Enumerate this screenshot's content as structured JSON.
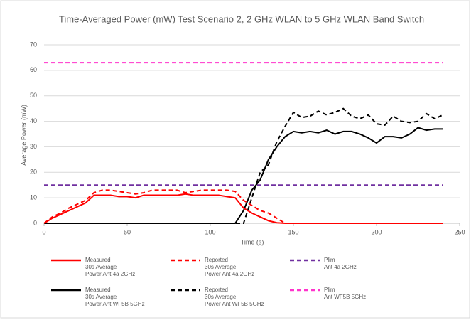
{
  "chart_data": {
    "type": "line",
    "title": "Time-Averaged Power (mW) Test Scenario 2, 2 GHz WLAN to 5 GHz WLAN Band Switch",
    "x_label": "Time (s)",
    "y_label": "Average Power (mW)",
    "xlim": [
      0,
      250
    ],
    "xticks": [
      0,
      50,
      100,
      150,
      200,
      250
    ],
    "ylim": [
      0,
      70
    ],
    "yticks": [
      0,
      10,
      20,
      30,
      40,
      50,
      60,
      70
    ],
    "grid": true,
    "legend": "bottom",
    "x": [
      0,
      5,
      10,
      15,
      20,
      25,
      30,
      35,
      40,
      45,
      50,
      55,
      60,
      65,
      70,
      75,
      80,
      85,
      90,
      95,
      100,
      105,
      110,
      115,
      120,
      125,
      130,
      135,
      140,
      145,
      150,
      155,
      160,
      165,
      170,
      175,
      180,
      185,
      190,
      195,
      200,
      205,
      210,
      215,
      220,
      225,
      230,
      235,
      240
    ],
    "series": [
      {
        "name": "Plim\nAnt 4a 2GHz",
        "color": "#7030a0",
        "dashed": true,
        "values": [
          15,
          15,
          15,
          15,
          15,
          15,
          15,
          15,
          15,
          15,
          15,
          15,
          15,
          15,
          15,
          15,
          15,
          15,
          15,
          15,
          15,
          15,
          15,
          15,
          15,
          15,
          15,
          15,
          15,
          15,
          15,
          15,
          15,
          15,
          15,
          15,
          15,
          15,
          15,
          15,
          15,
          15,
          15,
          15,
          15,
          15,
          15,
          15,
          15
        ]
      },
      {
        "name": "Plim\nAnt WF5B 5GHz",
        "color": "#ff33cc",
        "dashed": true,
        "values": [
          63,
          63,
          63,
          63,
          63,
          63,
          63,
          63,
          63,
          63,
          63,
          63,
          63,
          63,
          63,
          63,
          63,
          63,
          63,
          63,
          63,
          63,
          63,
          63,
          63,
          63,
          63,
          63,
          63,
          63,
          63,
          63,
          63,
          63,
          63,
          63,
          63,
          63,
          63,
          63,
          63,
          63,
          63,
          63,
          63,
          63,
          63,
          63,
          63
        ]
      },
      {
        "name": "Measured\n30s Average\nPower Ant WF5B 5GHz",
        "color": "#000000",
        "dashed": false,
        "values": [
          0,
          0,
          0,
          0,
          0,
          0,
          0,
          0,
          0,
          0,
          0,
          0,
          0,
          0,
          0,
          0,
          0,
          0,
          0,
          0,
          0,
          0,
          0,
          0,
          5,
          13,
          17,
          25,
          30,
          34,
          36,
          35.5,
          36,
          35.5,
          36.5,
          35,
          36,
          36,
          35,
          33.5,
          31.5,
          34,
          34,
          33.5,
          35,
          37.5,
          36.5,
          37,
          37
        ]
      },
      {
        "name": "Reported\n30s Average\nPower Ant WF5B 5GHz",
        "color": "#000000",
        "dashed": true,
        "values": [
          0,
          0,
          0,
          0,
          0,
          0,
          0,
          0,
          0,
          0,
          0,
          0,
          0,
          0,
          0,
          0,
          0,
          0,
          0,
          0,
          0,
          0,
          0,
          0,
          0,
          10,
          20,
          23,
          32,
          38,
          43.5,
          41.5,
          42,
          44,
          42.5,
          43.5,
          45,
          42,
          41,
          42.5,
          39,
          38.5,
          42,
          40,
          39.5,
          40,
          43,
          41,
          42.5
        ]
      },
      {
        "name": "Measured\n30s Average\nPower Ant 4a 2GHz",
        "color": "#ff0000",
        "dashed": false,
        "values": [
          0,
          2,
          3.5,
          5,
          6.5,
          8,
          11,
          11,
          11,
          10.5,
          10.5,
          10,
          11,
          11,
          11,
          11,
          11,
          11.5,
          11,
          11,
          11,
          11,
          10.5,
          10,
          6,
          4,
          2.5,
          1,
          0.2,
          0,
          0,
          0,
          0,
          0,
          0,
          0,
          0,
          0,
          0,
          0,
          0,
          0,
          0,
          0,
          0,
          0,
          0,
          0,
          0
        ]
      },
      {
        "name": "Reported\n30s Average\nPower Ant 4a 2GHz",
        "color": "#ff0000",
        "dashed": true,
        "values": [
          0,
          2.5,
          4,
          6,
          7.5,
          9,
          12,
          13,
          13,
          12.5,
          12,
          11.5,
          12,
          13,
          13,
          13,
          13,
          12,
          12.5,
          13,
          13,
          13,
          13,
          12.5,
          9,
          7,
          5,
          4,
          2,
          0,
          0,
          0,
          0,
          0,
          0,
          0,
          0,
          0,
          0,
          0,
          0,
          0,
          0,
          0,
          0,
          0,
          0,
          0,
          0
        ]
      }
    ]
  }
}
